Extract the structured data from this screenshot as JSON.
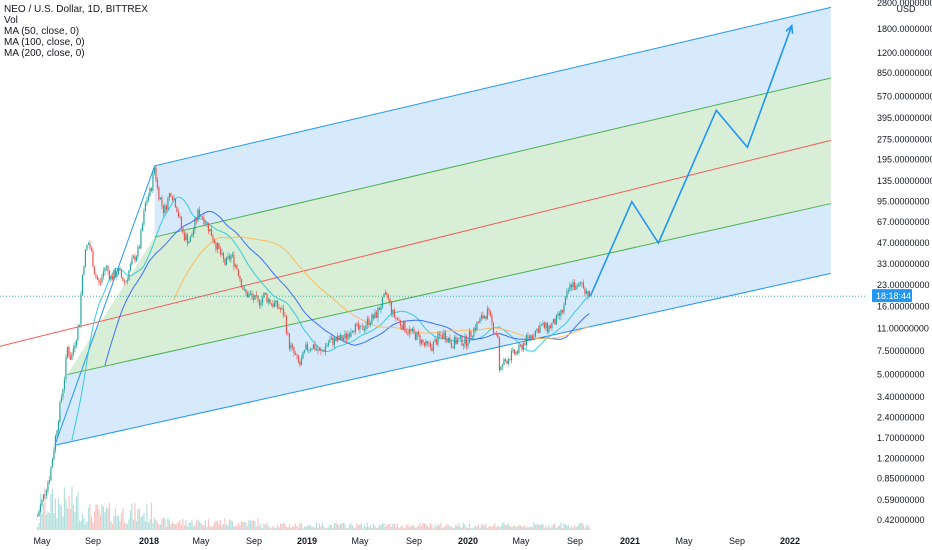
{
  "legend": {
    "symbol_line": "NEO / U.S. Dollar, 1D, BITTREX",
    "vol": "Vol",
    "ma50": "MA (50, close, 0)",
    "ma100": "MA (100, close, 0)",
    "ma200": "MA (200, close, 0)"
  },
  "colors": {
    "channel_blue": "#2196f3",
    "channel_fill_blue": "#cfe6fb",
    "channel_fill_green": "#d5ecd3",
    "median_red": "#f25c54",
    "inner_green": "#4caf50",
    "candle_up": "#26a69a",
    "candle_down": "#ef5350",
    "ma50": "#26c6da",
    "ma100": "#2962ff",
    "ma200": "#ffb74d",
    "price_tag": "#2196f3"
  },
  "chart_data": {
    "type": "line",
    "title": "NEO / U.S. Dollar, 1D, BITTREX",
    "y_scale": "log",
    "y_unit": "USD",
    "ylim": [
      0.4,
      2800
    ],
    "y_ticks": [
      "2800.00000000",
      "1800.00000000",
      "1200.00000000",
      "850.00000000",
      "570.00000000",
      "395.00000000",
      "275.00000000",
      "195.00000000",
      "135.00000000",
      "95.00000000",
      "67.00000000",
      "47.00000000",
      "33.00000000",
      "23.00000000",
      "16.00000000",
      "11.00000000",
      "7.50000000",
      "5.00000000",
      "3.40000000",
      "2.40000000",
      "1.70000000",
      "1.20000000",
      "0.85000000",
      "0.59000000",
      "0.42000000"
    ],
    "y_tick_values": [
      2800,
      1800,
      1200,
      850,
      570,
      395,
      275,
      195,
      135,
      95,
      67,
      47,
      33,
      23,
      16,
      11,
      7.5,
      5,
      3.4,
      2.4,
      1.7,
      1.2,
      0.85,
      0.59,
      0.42
    ],
    "x_ticks": [
      "May",
      "Sep",
      "2018",
      "May",
      "Sep",
      "2019",
      "May",
      "Sep",
      "2020",
      "May",
      "Sep",
      "2021",
      "May",
      "Sep",
      "2022"
    ],
    "x_tick_dates": [
      "2017-05-01",
      "2017-09-01",
      "2018-01-01",
      "2018-05-01",
      "2018-09-01",
      "2019-01-01",
      "2019-05-01",
      "2019-09-01",
      "2020-01-01",
      "2020-05-01",
      "2020-09-01",
      "2021-01-01",
      "2021-05-01",
      "2021-09-01",
      "2022-01-01"
    ],
    "current_price_label": "18:18:44",
    "current_price": 19.0,
    "price_series": {
      "name": "NEO/USD close (approx.)",
      "points": [
        [
          "2017-04-20",
          0.45
        ],
        [
          "2017-05-20",
          0.9
        ],
        [
          "2017-06-10",
          2.5
        ],
        [
          "2017-06-25",
          5.0
        ],
        [
          "2017-07-01",
          8.0
        ],
        [
          "2017-07-10",
          6.5
        ],
        [
          "2017-07-20",
          9.0
        ],
        [
          "2017-07-30",
          12.0
        ],
        [
          "2017-08-05",
          25.0
        ],
        [
          "2017-08-12",
          38.0
        ],
        [
          "2017-08-20",
          48.0
        ],
        [
          "2017-08-28",
          40.0
        ],
        [
          "2017-09-05",
          28.0
        ],
        [
          "2017-09-15",
          23.0
        ],
        [
          "2017-09-28",
          32.0
        ],
        [
          "2017-10-10",
          26.0
        ],
        [
          "2017-10-25",
          29.0
        ],
        [
          "2017-11-10",
          24.0
        ],
        [
          "2017-11-25",
          34.0
        ],
        [
          "2017-12-10",
          42.0
        ],
        [
          "2017-12-25",
          95.0
        ],
        [
          "2018-01-05",
          115.0
        ],
        [
          "2018-01-14",
          175.0
        ],
        [
          "2018-01-20",
          120.0
        ],
        [
          "2018-02-05",
          80.0
        ],
        [
          "2018-02-20",
          115.0
        ],
        [
          "2018-03-05",
          90.0
        ],
        [
          "2018-03-20",
          55.0
        ],
        [
          "2018-04-05",
          48.0
        ],
        [
          "2018-04-25",
          80.0
        ],
        [
          "2018-05-10",
          70.0
        ],
        [
          "2018-05-25",
          55.0
        ],
        [
          "2018-06-10",
          42.0
        ],
        [
          "2018-06-25",
          33.0
        ],
        [
          "2018-07-10",
          38.0
        ],
        [
          "2018-07-25",
          30.0
        ],
        [
          "2018-08-10",
          20.0
        ],
        [
          "2018-08-25",
          19.0
        ],
        [
          "2018-09-10",
          17.0
        ],
        [
          "2018-09-25",
          19.5
        ],
        [
          "2018-10-10",
          17.0
        ],
        [
          "2018-10-25",
          16.0
        ],
        [
          "2018-11-10",
          14.0
        ],
        [
          "2018-11-20",
          8.5
        ],
        [
          "2018-12-05",
          6.8
        ],
        [
          "2018-12-15",
          5.8
        ],
        [
          "2018-12-30",
          7.8
        ],
        [
          "2019-01-15",
          8.2
        ],
        [
          "2019-02-01",
          7.2
        ],
        [
          "2019-02-20",
          8.8
        ],
        [
          "2019-03-10",
          9.0
        ],
        [
          "2019-03-30",
          9.5
        ],
        [
          "2019-04-15",
          11.5
        ],
        [
          "2019-05-01",
          10.5
        ],
        [
          "2019-05-20",
          12.5
        ],
        [
          "2019-06-05",
          13.5
        ],
        [
          "2019-06-20",
          17.0
        ],
        [
          "2019-07-01",
          19.5
        ],
        [
          "2019-07-15",
          14.0
        ],
        [
          "2019-08-01",
          12.0
        ],
        [
          "2019-08-20",
          10.5
        ],
        [
          "2019-09-10",
          9.5
        ],
        [
          "2019-09-25",
          8.2
        ],
        [
          "2019-10-10",
          8.0
        ],
        [
          "2019-10-28",
          9.5
        ],
        [
          "2019-11-10",
          10.0
        ],
        [
          "2019-11-25",
          8.5
        ],
        [
          "2019-12-10",
          9.0
        ],
        [
          "2019-12-28",
          8.8
        ],
        [
          "2020-01-15",
          11.0
        ],
        [
          "2020-02-05",
          13.5
        ],
        [
          "2020-02-15",
          14.5
        ],
        [
          "2020-02-28",
          11.0
        ],
        [
          "2020-03-10",
          9.5
        ],
        [
          "2020-03-13",
          5.0
        ],
        [
          "2020-03-20",
          6.0
        ],
        [
          "2020-04-05",
          6.8
        ],
        [
          "2020-04-25",
          7.5
        ],
        [
          "2020-05-10",
          8.8
        ],
        [
          "2020-05-30",
          10.2
        ],
        [
          "2020-06-15",
          11.5
        ],
        [
          "2020-07-01",
          11.0
        ],
        [
          "2020-07-20",
          12.5
        ],
        [
          "2020-08-05",
          15.0
        ],
        [
          "2020-08-15",
          20.0
        ],
        [
          "2020-08-25",
          24.0
        ],
        [
          "2020-09-05",
          21.0
        ],
        [
          "2020-09-15",
          24.5
        ],
        [
          "2020-09-25",
          21.0
        ],
        [
          "2020-10-05",
          19.0
        ]
      ]
    },
    "projection": {
      "name": "Projected path",
      "points": [
        [
          "2020-10-05",
          19.0
        ],
        [
          "2021-01-05",
          95.0
        ],
        [
          "2021-03-05",
          47.0
        ],
        [
          "2021-07-15",
          450.0
        ],
        [
          "2021-09-25",
          240.0
        ],
        [
          "2022-01-05",
          1900.0
        ]
      ]
    },
    "pitchfork_channel": {
      "upper": [
        [
          "2018-01-14",
          175.0
        ],
        [
          "2022-04-05",
          2600.0
        ]
      ],
      "upper_inner": [
        [
          "2018-01-14",
          52.0
        ],
        [
          "2022-04-05",
          780.0
        ]
      ],
      "median": [
        [
          "2016-08-01",
          6.0
        ],
        [
          "2022-04-05",
          270.0
        ]
      ],
      "lower_inner": [
        [
          "2017-07-01",
          5.0
        ],
        [
          "2022-04-05",
          92.0
        ]
      ],
      "lower": [
        [
          "2017-06-01",
          1.5
        ],
        [
          "2022-04-05",
          28.0
        ]
      ]
    }
  }
}
